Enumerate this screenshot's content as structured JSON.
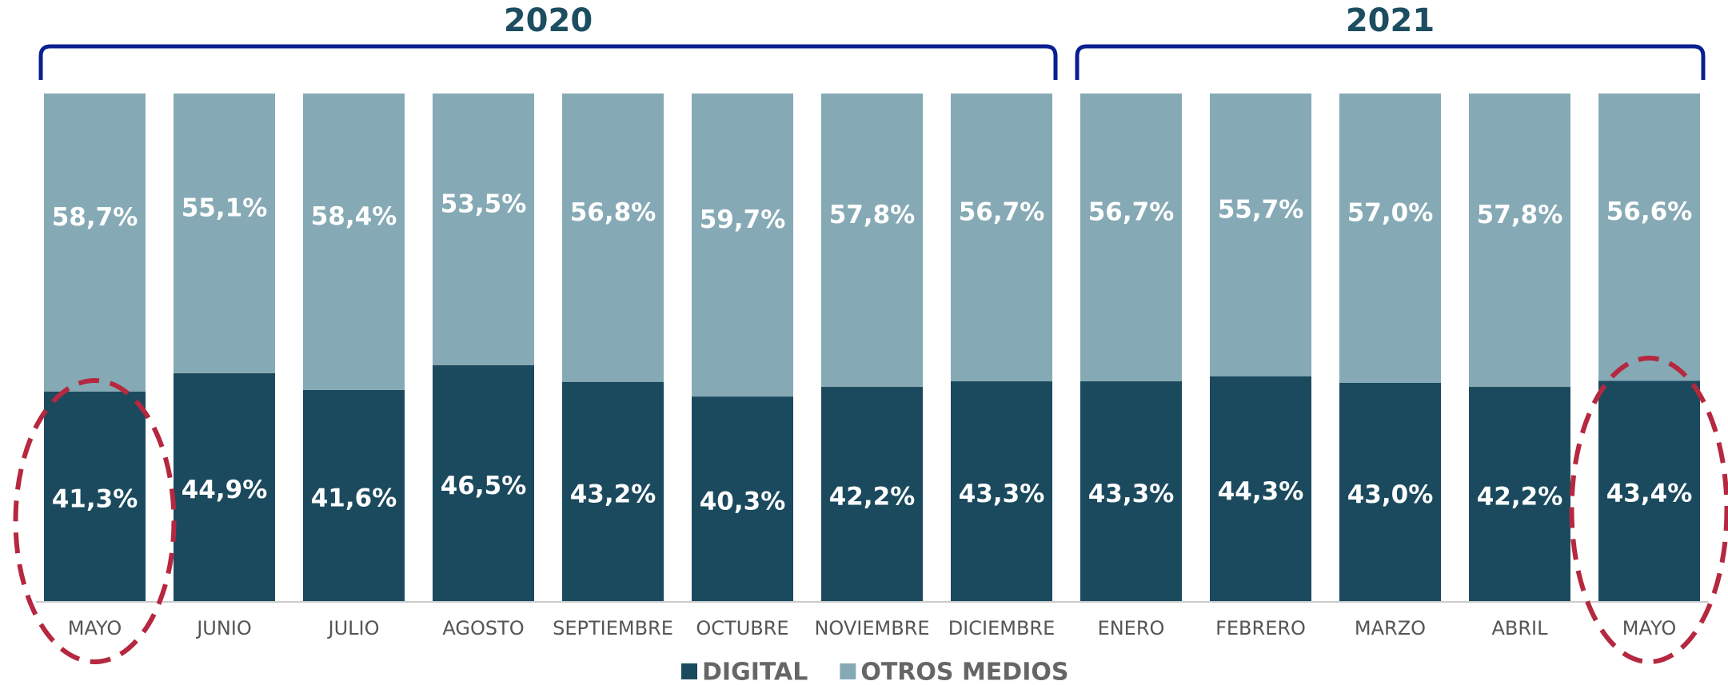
{
  "chart_data": {
    "type": "stacked_bar",
    "categories": [
      "MAYO",
      "JUNIO",
      "JULIO",
      "AGOSTO",
      "SEPTIEMBRE",
      "OCTUBRE",
      "NOVIEMBRE",
      "DICIEMBRE",
      "ENERO",
      "FEBRERO",
      "MARZO",
      "ABRIL",
      "MAYO"
    ],
    "groups": [
      {
        "label": "2020",
        "span": 8
      },
      {
        "label": "2021",
        "span": 5
      }
    ],
    "series": [
      {
        "name": "DIGITAL",
        "color": "#1b4a5e",
        "values": [
          41.3,
          44.9,
          41.6,
          46.5,
          43.2,
          40.3,
          42.2,
          43.3,
          43.3,
          44.3,
          43.0,
          42.2,
          43.4
        ],
        "value_labels": [
          "41,3%",
          "44,9%",
          "41,6%",
          "46,5%",
          "43,2%",
          "40,3%",
          "42,2%",
          "43,3%",
          "43,3%",
          "44,3%",
          "43,0%",
          "42,2%",
          "43,4%"
        ]
      },
      {
        "name": "OTROS MEDIOS",
        "color": "#86aab5",
        "values": [
          58.7,
          55.1,
          58.4,
          53.5,
          56.8,
          59.7,
          57.8,
          56.7,
          56.7,
          55.7,
          57.0,
          57.8,
          56.6
        ],
        "value_labels": [
          "58,7%",
          "55,1%",
          "58,4%",
          "53,5%",
          "56,8%",
          "59,7%",
          "57,8%",
          "56,7%",
          "56,7%",
          "55,7%",
          "57,0%",
          "57,8%",
          "56,6%"
        ]
      }
    ],
    "ylim": [
      0,
      100
    ]
  }
}
